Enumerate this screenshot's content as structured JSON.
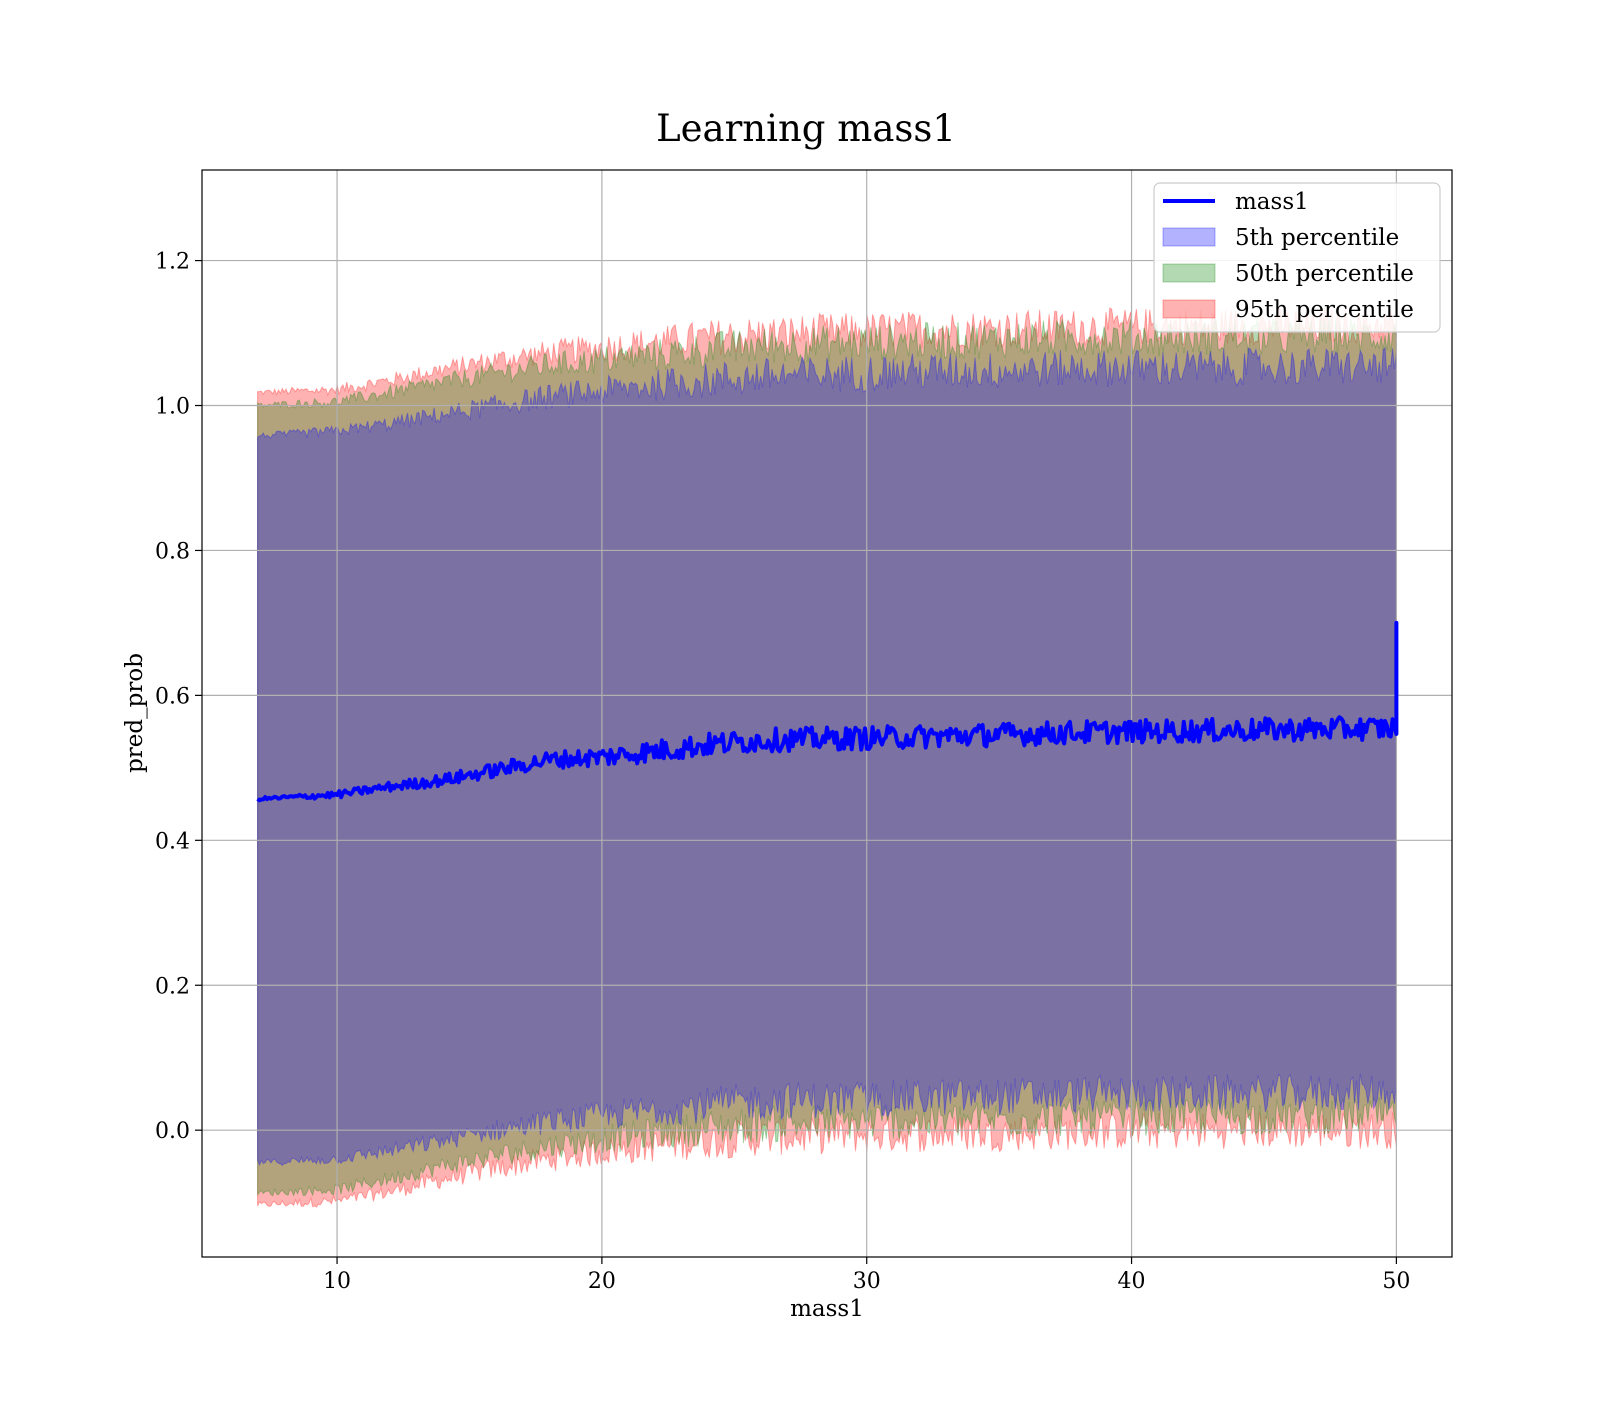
{
  "chart_data": {
    "type": "line",
    "title": "Learning mass1",
    "xlabel": "mass1",
    "ylabel": "pred_prob",
    "xlim": [
      4.9,
      52.1
    ],
    "ylim": [
      -0.175,
      1.325
    ],
    "x_ticks": [
      10,
      20,
      30,
      40,
      50
    ],
    "y_ticks": [
      0.0,
      0.2,
      0.4,
      0.6,
      0.8,
      1.0,
      1.2
    ],
    "x_tick_labels": [
      "10",
      "20",
      "30",
      "40",
      "50"
    ],
    "y_tick_labels": [
      "0.0",
      "0.2",
      "0.4",
      "0.6",
      "0.8",
      "1.0",
      "1.2"
    ],
    "grid": true,
    "legend_position": "top-right",
    "colors": {
      "line": "#0000ff",
      "band_5": "#0000ff",
      "band_50": "#008000",
      "band_95": "#ff0000"
    },
    "x": [
      7,
      10,
      12,
      14,
      16,
      18,
      20,
      22,
      24,
      26,
      28,
      30,
      32,
      34,
      36,
      38,
      40,
      42,
      44,
      46,
      48,
      50
    ],
    "series": [
      {
        "name": "mass1",
        "kind": "line",
        "values": [
          0.457,
          0.463,
          0.474,
          0.483,
          0.497,
          0.511,
          0.515,
          0.523,
          0.532,
          0.538,
          0.54,
          0.541,
          0.543,
          0.545,
          0.547,
          0.549,
          0.55,
          0.551,
          0.552,
          0.553,
          0.554,
          0.555
        ]
      },
      {
        "name": "5th percentile",
        "kind": "band",
        "lower": [
          -0.045,
          -0.04,
          -0.028,
          -0.015,
          0.0,
          0.012,
          0.02,
          0.028,
          0.035,
          0.04,
          0.042,
          0.043,
          0.045,
          0.046,
          0.048,
          0.049,
          0.05,
          0.05,
          0.051,
          0.051,
          0.052,
          0.052
        ],
        "upper": [
          0.958,
          0.965,
          0.975,
          0.988,
          1.0,
          1.012,
          1.02,
          1.028,
          1.035,
          1.04,
          1.043,
          1.045,
          1.047,
          1.048,
          1.05,
          1.051,
          1.052,
          1.052,
          1.053,
          1.053,
          1.054,
          1.054
        ]
      },
      {
        "name": "50th percentile",
        "kind": "band",
        "lower": [
          -0.087,
          -0.082,
          -0.067,
          -0.05,
          -0.035,
          -0.022,
          -0.012,
          -0.005,
          0.003,
          0.008,
          0.01,
          0.012,
          0.013,
          0.014,
          0.016,
          0.017,
          0.018,
          0.018,
          0.019,
          0.019,
          0.02,
          0.02
        ],
        "upper": [
          1.0,
          1.005,
          1.018,
          1.032,
          1.045,
          1.056,
          1.063,
          1.07,
          1.077,
          1.082,
          1.085,
          1.087,
          1.089,
          1.09,
          1.092,
          1.093,
          1.094,
          1.094,
          1.095,
          1.095,
          1.096,
          1.096
        ]
      },
      {
        "name": "95th percentile",
        "kind": "band",
        "lower": [
          -0.103,
          -0.098,
          -0.085,
          -0.068,
          -0.053,
          -0.04,
          -0.03,
          -0.022,
          -0.015,
          -0.01,
          -0.008,
          -0.006,
          -0.005,
          -0.004,
          -0.003,
          -0.002,
          -0.001,
          -0.001,
          0.0,
          0.0,
          0.0,
          0.0
        ],
        "upper": [
          1.018,
          1.022,
          1.035,
          1.05,
          1.063,
          1.073,
          1.08,
          1.087,
          1.094,
          1.098,
          1.101,
          1.103,
          1.105,
          1.106,
          1.107,
          1.108,
          1.109,
          1.11,
          1.11,
          1.111,
          1.111,
          1.112
        ]
      }
    ],
    "annotations": [
      {
        "x": 50,
        "y": 0.7,
        "text": ""
      }
    ]
  }
}
